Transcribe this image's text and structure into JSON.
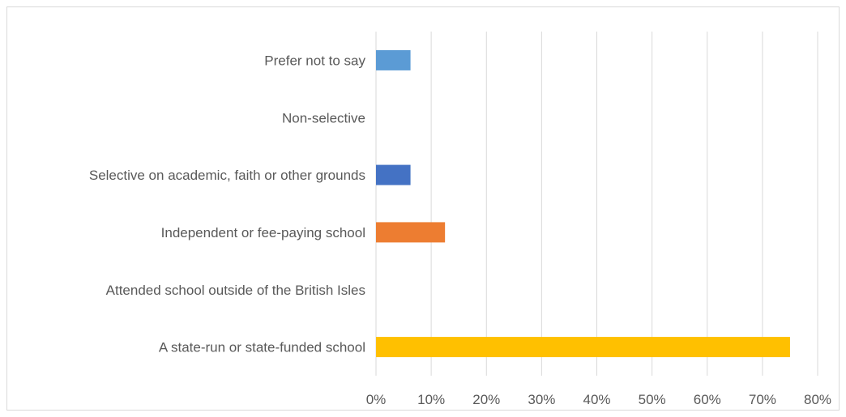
{
  "chart_data": {
    "type": "bar",
    "orientation": "horizontal",
    "title": "",
    "xlabel": "",
    "ylabel": "",
    "categories": [
      "A state-run or state-funded school",
      "Attended school outside of the British Isles",
      "Independent or fee-paying school",
      "Selective on academic, faith or other grounds",
      "Non-selective",
      "Prefer not to say"
    ],
    "values": [
      0.75,
      0.0,
      0.125,
      0.0625,
      0.0,
      0.0625
    ],
    "colors": [
      "#FFC000",
      "#A5A5A5",
      "#ED7D31",
      "#4472C4",
      "#70AD47",
      "#5B9BD5"
    ],
    "xlim": [
      0,
      0.8
    ],
    "xticks": [
      0,
      0.1,
      0.2,
      0.3,
      0.4,
      0.5,
      0.6,
      0.7,
      0.8
    ],
    "xtick_labels": [
      "0%",
      "10%",
      "20%",
      "30%",
      "40%",
      "50%",
      "60%",
      "70%",
      "80%"
    ],
    "grid": "vertical",
    "legend": "none"
  }
}
